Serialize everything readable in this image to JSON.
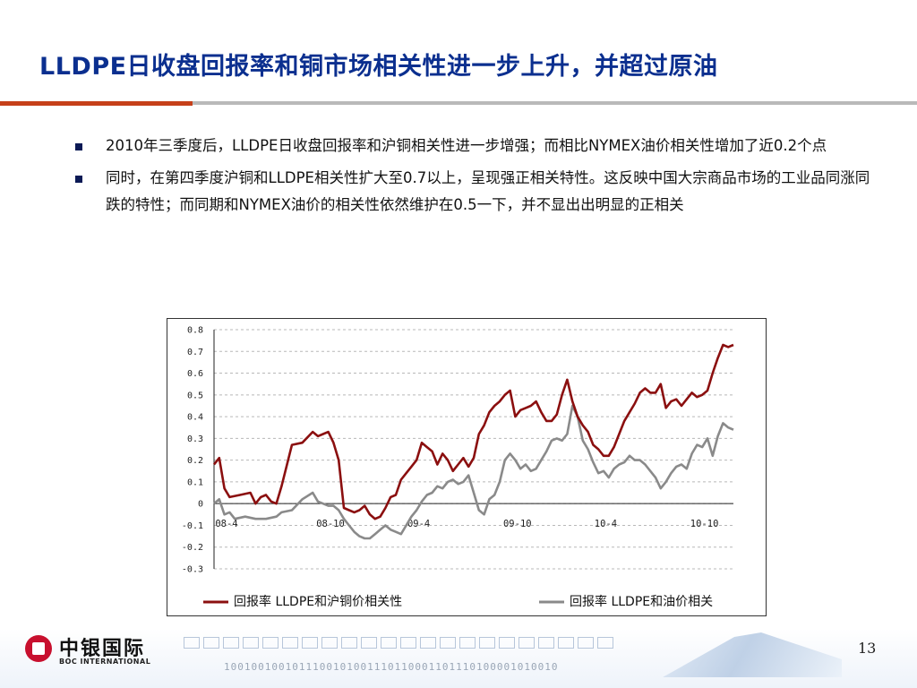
{
  "slide": {
    "title": "LLDPE日收盘回报率和铜市场相关性进一步上升，并超过原油",
    "page_number": "13",
    "accent_color": "#c6401a",
    "title_color": "#0b2f8f"
  },
  "bullets": [
    "2010年三季度后，LLDPE日收盘回报率和沪铜相关性进一步增强；而相比NYMEX油价相关性增加了近0.2个点",
    "同时，在第四季度沪铜和LLDPE相关性扩大至0.7以上，呈现强正相关特性。这反映中国大宗商品市场的工业品同涨同跌的特性；而同期和NYMEX油价的相关性依然维护在0.5一下，并不显出出明显的正相关"
  ],
  "logo": {
    "cn": "中银国际",
    "en": "BOC INTERNATIONAL",
    "binary": "1001001001011100101001110110001101110100001010010"
  },
  "chart_data": {
    "type": "line",
    "title": "",
    "xlabel": "",
    "ylabel": "",
    "ylim": [
      -0.3,
      0.8
    ],
    "yticks": [
      0.8,
      0.7,
      0.6,
      0.5,
      0.4,
      0.3,
      0.2,
      0.1,
      0,
      -0.1,
      -0.2,
      -0.3
    ],
    "ytick_labels": [
      "0.8",
      "0.7",
      "0.6",
      "0.5",
      "0.4",
      "0.3",
      "0.2",
      "0.1",
      "0",
      "-0.1",
      "-0.2",
      "-0.3"
    ],
    "x_range": [
      0,
      100
    ],
    "x_ticks": [
      {
        "label": "08-4",
        "x": 0
      },
      {
        "label": "08-10",
        "x": 20
      },
      {
        "label": "09-4",
        "x": 37
      },
      {
        "label": "09-10",
        "x": 56
      },
      {
        "label": "10-4",
        "x": 73
      },
      {
        "label": "10-10",
        "x": 92
      }
    ],
    "grid": true,
    "legend_position": "bottom",
    "series": [
      {
        "name": "回报率 LLDPE和沪铜价相关性",
        "color": "#8b0f0f",
        "points": [
          [
            0,
            0.18
          ],
          [
            1,
            0.21
          ],
          [
            2,
            0.07
          ],
          [
            3,
            0.03
          ],
          [
            5,
            0.04
          ],
          [
            7,
            0.05
          ],
          [
            8,
            0.0
          ],
          [
            9,
            0.03
          ],
          [
            10,
            0.04
          ],
          [
            11,
            0.01
          ],
          [
            12,
            0.0
          ],
          [
            13,
            0.08
          ],
          [
            15,
            0.27
          ],
          [
            17,
            0.28
          ],
          [
            19,
            0.33
          ],
          [
            20,
            0.31
          ],
          [
            21,
            0.32
          ],
          [
            22,
            0.33
          ],
          [
            23,
            0.28
          ],
          [
            24,
            0.2
          ],
          [
            25,
            -0.02
          ],
          [
            26,
            -0.03
          ],
          [
            27,
            -0.04
          ],
          [
            28,
            -0.03
          ],
          [
            29,
            -0.01
          ],
          [
            30,
            -0.05
          ],
          [
            31,
            -0.07
          ],
          [
            32,
            -0.06
          ],
          [
            33,
            -0.02
          ],
          [
            34,
            0.03
          ],
          [
            35,
            0.04
          ],
          [
            36,
            0.11
          ],
          [
            37,
            0.14
          ],
          [
            38,
            0.17
          ],
          [
            39,
            0.2
          ],
          [
            40,
            0.28
          ],
          [
            41,
            0.26
          ],
          [
            42,
            0.24
          ],
          [
            43,
            0.18
          ],
          [
            44,
            0.23
          ],
          [
            45,
            0.2
          ],
          [
            46,
            0.15
          ],
          [
            47,
            0.18
          ],
          [
            48,
            0.21
          ],
          [
            49,
            0.17
          ],
          [
            50,
            0.21
          ],
          [
            51,
            0.32
          ],
          [
            52,
            0.36
          ],
          [
            53,
            0.42
          ],
          [
            54,
            0.45
          ],
          [
            55,
            0.47
          ],
          [
            56,
            0.5
          ],
          [
            57,
            0.52
          ],
          [
            58,
            0.4
          ],
          [
            59,
            0.43
          ],
          [
            60,
            0.44
          ],
          [
            61,
            0.45
          ],
          [
            62,
            0.47
          ],
          [
            63,
            0.42
          ],
          [
            64,
            0.38
          ],
          [
            65,
            0.38
          ],
          [
            66,
            0.41
          ],
          [
            67,
            0.5
          ],
          [
            68,
            0.57
          ],
          [
            69,
            0.47
          ],
          [
            70,
            0.4
          ],
          [
            71,
            0.36
          ],
          [
            72,
            0.33
          ],
          [
            73,
            0.27
          ],
          [
            74,
            0.25
          ],
          [
            75,
            0.22
          ],
          [
            76,
            0.22
          ],
          [
            77,
            0.26
          ],
          [
            78,
            0.32
          ],
          [
            79,
            0.38
          ],
          [
            80,
            0.42
          ],
          [
            81,
            0.46
          ],
          [
            82,
            0.51
          ],
          [
            83,
            0.53
          ],
          [
            84,
            0.51
          ],
          [
            85,
            0.51
          ],
          [
            86,
            0.55
          ],
          [
            87,
            0.44
          ],
          [
            88,
            0.47
          ],
          [
            89,
            0.48
          ],
          [
            90,
            0.45
          ],
          [
            91,
            0.48
          ],
          [
            92,
            0.51
          ],
          [
            93,
            0.49
          ],
          [
            94,
            0.5
          ],
          [
            95,
            0.52
          ],
          [
            96,
            0.6
          ],
          [
            97,
            0.67
          ],
          [
            98,
            0.73
          ],
          [
            99,
            0.72
          ],
          [
            100,
            0.73
          ]
        ]
      },
      {
        "name": "回报率 LLDPE和油价相关",
        "color": "#8a8a8a",
        "points": [
          [
            0,
            0.0
          ],
          [
            1,
            0.02
          ],
          [
            2,
            -0.05
          ],
          [
            3,
            -0.04
          ],
          [
            4,
            -0.07
          ],
          [
            6,
            -0.06
          ],
          [
            8,
            -0.07
          ],
          [
            10,
            -0.07
          ],
          [
            12,
            -0.06
          ],
          [
            13,
            -0.04
          ],
          [
            15,
            -0.03
          ],
          [
            17,
            0.02
          ],
          [
            19,
            0.05
          ],
          [
            20,
            0.01
          ],
          [
            21,
            0.0
          ],
          [
            22,
            -0.01
          ],
          [
            23,
            -0.01
          ],
          [
            24,
            -0.03
          ],
          [
            25,
            -0.07
          ],
          [
            26,
            -0.1
          ],
          [
            27,
            -0.13
          ],
          [
            28,
            -0.15
          ],
          [
            29,
            -0.16
          ],
          [
            30,
            -0.16
          ],
          [
            31,
            -0.14
          ],
          [
            32,
            -0.12
          ],
          [
            33,
            -0.1
          ],
          [
            34,
            -0.12
          ],
          [
            35,
            -0.13
          ],
          [
            36,
            -0.14
          ],
          [
            37,
            -0.1
          ],
          [
            38,
            -0.06
          ],
          [
            39,
            -0.03
          ],
          [
            40,
            0.01
          ],
          [
            41,
            0.04
          ],
          [
            42,
            0.05
          ],
          [
            43,
            0.08
          ],
          [
            44,
            0.07
          ],
          [
            45,
            0.1
          ],
          [
            46,
            0.11
          ],
          [
            47,
            0.09
          ],
          [
            48,
            0.1
          ],
          [
            49,
            0.13
          ],
          [
            50,
            0.05
          ],
          [
            51,
            -0.03
          ],
          [
            52,
            -0.05
          ],
          [
            53,
            0.02
          ],
          [
            54,
            0.04
          ],
          [
            55,
            0.1
          ],
          [
            56,
            0.2
          ],
          [
            57,
            0.23
          ],
          [
            58,
            0.2
          ],
          [
            59,
            0.16
          ],
          [
            60,
            0.18
          ],
          [
            61,
            0.15
          ],
          [
            62,
            0.16
          ],
          [
            63,
            0.2
          ],
          [
            64,
            0.24
          ],
          [
            65,
            0.29
          ],
          [
            66,
            0.3
          ],
          [
            67,
            0.29
          ],
          [
            68,
            0.32
          ],
          [
            69,
            0.45
          ],
          [
            70,
            0.4
          ],
          [
            71,
            0.29
          ],
          [
            72,
            0.25
          ],
          [
            73,
            0.19
          ],
          [
            74,
            0.14
          ],
          [
            75,
            0.15
          ],
          [
            76,
            0.12
          ],
          [
            77,
            0.16
          ],
          [
            78,
            0.18
          ],
          [
            79,
            0.19
          ],
          [
            80,
            0.22
          ],
          [
            81,
            0.2
          ],
          [
            82,
            0.2
          ],
          [
            83,
            0.18
          ],
          [
            84,
            0.15
          ],
          [
            85,
            0.12
          ],
          [
            86,
            0.07
          ],
          [
            87,
            0.1
          ],
          [
            88,
            0.14
          ],
          [
            89,
            0.17
          ],
          [
            90,
            0.18
          ],
          [
            91,
            0.16
          ],
          [
            92,
            0.23
          ],
          [
            93,
            0.27
          ],
          [
            94,
            0.26
          ],
          [
            95,
            0.3
          ],
          [
            96,
            0.22
          ],
          [
            97,
            0.31
          ],
          [
            98,
            0.37
          ],
          [
            99,
            0.35
          ],
          [
            100,
            0.34
          ]
        ]
      }
    ]
  }
}
